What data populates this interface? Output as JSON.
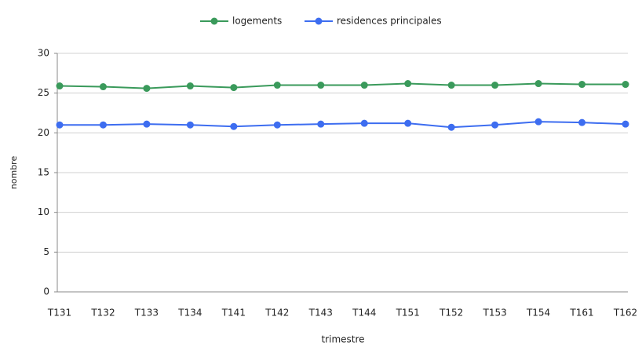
{
  "chart_data": {
    "type": "line",
    "x_label": "trimestre",
    "y_label": "nombre",
    "categories": [
      "T131",
      "T132",
      "T133",
      "T134",
      "T141",
      "T142",
      "T143",
      "T144",
      "T151",
      "T152",
      "T153",
      "T154",
      "T161",
      "T162"
    ],
    "series": [
      {
        "name": "logements",
        "color": "#3a9a5b",
        "values": [
          25.9,
          25.8,
          25.6,
          25.9,
          25.7,
          26.0,
          26.0,
          26.0,
          26.2,
          26.0,
          26.0,
          26.2,
          26.1,
          26.1
        ]
      },
      {
        "name": "residences principales",
        "color": "#3d6df0",
        "values": [
          21.0,
          21.0,
          21.1,
          21.0,
          20.8,
          21.0,
          21.1,
          21.2,
          21.2,
          20.7,
          21.0,
          21.4,
          21.3,
          21.1
        ]
      }
    ],
    "ylim": [
      0,
      30
    ],
    "yticks": [
      0,
      5,
      10,
      15,
      20,
      25,
      30
    ],
    "grid": true,
    "legend": "top"
  }
}
